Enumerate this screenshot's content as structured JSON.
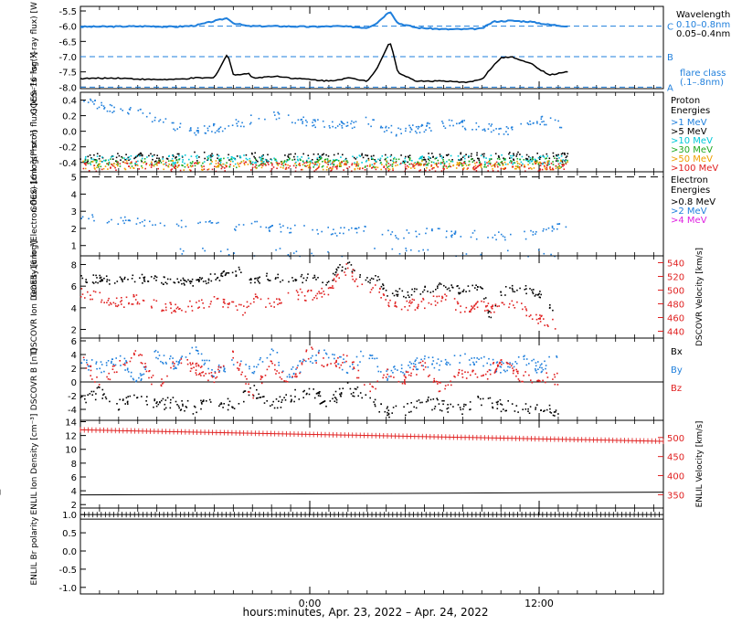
{
  "figure": {
    "xaxis_title": "hours:minutes, Apr. 23, 2022 – Apr. 24, 2022",
    "colors": {
      "black": "#000000",
      "blue": "#1f7fdc",
      "cyan": "#00c8d8",
      "green": "#1fa81f",
      "orange": "#f0a000",
      "red": "#e02020",
      "magenta": "#e020e0"
    }
  },
  "chart_data": [
    {
      "type": "line",
      "panel": "goes-xray",
      "ylabel": "GOES–16 log(X-ray flux) [W m⁻²]",
      "yticks": [
        "-5.5",
        "-6.0",
        "-6.5",
        "-7.0",
        "-7.5",
        "-8.0"
      ],
      "ylim": [
        -8.05,
        -5.35
      ],
      "xlim": [
        -12,
        18.5
      ],
      "legend": {
        "title": "Wavelength",
        "items": [
          {
            "text": "0.10–0.8nm",
            "color": "blue"
          },
          {
            "text": "0.05–0.4nm",
            "color": "black"
          }
        ],
        "note": [
          "flare class",
          "(.1–.8nm)"
        ]
      },
      "flare_levels": [
        {
          "label": "C",
          "value": -6.0
        },
        {
          "label": "B",
          "value": -7.0
        },
        {
          "label": "A",
          "value": -8.0
        }
      ],
      "series": [
        {
          "name": "0.10–0.8nm",
          "color": "blue",
          "x": [
            -12,
            -10,
            -8.5,
            -7,
            -6,
            -4.3,
            -4,
            -3.2,
            -1.5,
            0,
            1.5,
            3,
            3.5,
            4.2,
            4.6,
            5.6,
            7,
            8,
            9,
            9.6,
            10.5,
            11.5,
            12.5,
            13.5
          ],
          "y": [
            -6.02,
            -6.01,
            -6.0,
            -6.02,
            -5.98,
            -5.73,
            -5.9,
            -6.0,
            -6.0,
            -6.02,
            -6.0,
            -6.05,
            -5.9,
            -5.5,
            -5.9,
            -6.05,
            -6.1,
            -6.1,
            -6.08,
            -5.85,
            -5.82,
            -5.85,
            -5.95,
            -6.0
          ]
        },
        {
          "name": "0.05–0.4nm",
          "color": "black",
          "x": [
            -12,
            -10,
            -8.5,
            -7,
            -6,
            -5,
            -4.3,
            -4,
            -3.2,
            -3,
            -2,
            -1.5,
            -1,
            0,
            1,
            2,
            3,
            3.5,
            4.2,
            4.6,
            5.5,
            7,
            8,
            9,
            9.6,
            10,
            10.5,
            11.5,
            12.5,
            13.5
          ],
          "y": [
            -7.72,
            -7.7,
            -7.75,
            -7.75,
            -7.7,
            -7.7,
            -6.9,
            -7.6,
            -7.55,
            -7.7,
            -7.65,
            -7.65,
            -7.7,
            -7.75,
            -7.8,
            -7.7,
            -7.8,
            -7.4,
            -6.5,
            -7.5,
            -7.8,
            -7.8,
            -7.85,
            -7.75,
            -7.3,
            -7.05,
            -7.0,
            -7.2,
            -7.6,
            -7.5
          ]
        }
      ]
    },
    {
      "type": "scatter",
      "panel": "goes-proton",
      "ylabel": "GOES–16 log(Proton flux) [cm⁻²s⁻¹sr⁻¹]",
      "yticks": [
        "0.4",
        "0.2",
        "0.0",
        "-0.2",
        "-0.4"
      ],
      "ylim": [
        -0.52,
        0.5
      ],
      "xlim": [
        -12,
        18.5
      ],
      "legend": {
        "title": "Proton Energies",
        "items": [
          {
            "text": ">1 MeV",
            "color": "blue"
          },
          {
            "text": ">5 MeV",
            "color": "black"
          },
          {
            "text": ">10 MeV",
            "color": "cyan"
          },
          {
            "text": ">30 MeV",
            "color": "green"
          },
          {
            "text": ">50 MeV",
            "color": "orange"
          },
          {
            "text": ">100 MeV",
            "color": "red"
          }
        ]
      },
      "series": [
        {
          "name": ">1 MeV",
          "color": "blue",
          "x": [
            -12,
            -10.5,
            -9,
            -7.5,
            -6,
            -4.5,
            -3,
            -1.5,
            0,
            1.5,
            3,
            4.5,
            6,
            7.5,
            9,
            10.5,
            12,
            13.5
          ],
          "y": [
            0.38,
            0.3,
            0.25,
            0.1,
            0.0,
            0.05,
            0.15,
            0.2,
            0.1,
            0.08,
            0.12,
            0.0,
            0.05,
            0.1,
            0.05,
            0.0,
            0.15,
            0.05
          ]
        },
        {
          "name": ">5 MeV",
          "color": "black",
          "x": [
            -12,
            -9,
            -6,
            -3,
            0,
            3,
            6,
            9,
            12,
            13.5
          ],
          "y": [
            -0.35,
            -0.34,
            -0.32,
            -0.33,
            -0.34,
            -0.33,
            -0.34,
            -0.32,
            -0.33,
            -0.34
          ]
        },
        {
          "name": ">10 MeV",
          "color": "cyan",
          "x": [
            -12,
            -9,
            -6,
            -3,
            0,
            3,
            6,
            9,
            12,
            13.5
          ],
          "y": [
            -0.38,
            -0.37,
            -0.36,
            -0.37,
            -0.38,
            -0.37,
            -0.38,
            -0.36,
            -0.37,
            -0.38
          ]
        },
        {
          "name": ">30 MeV",
          "color": "green",
          "x": [
            -12,
            -9,
            -6,
            -3,
            0,
            3,
            6,
            9,
            12,
            13.5
          ],
          "y": [
            -0.41,
            -0.4,
            -0.4,
            -0.41,
            -0.4,
            -0.41,
            -0.4,
            -0.41,
            -0.4,
            -0.41
          ]
        },
        {
          "name": ">50 MeV",
          "color": "orange",
          "x": [
            -12,
            -9,
            -6,
            -3,
            0,
            3,
            6,
            9,
            12,
            13.5
          ],
          "y": [
            -0.44,
            -0.43,
            -0.44,
            -0.43,
            -0.44,
            -0.43,
            -0.44,
            -0.43,
            -0.44,
            -0.43
          ]
        },
        {
          "name": ">100 MeV",
          "color": "red",
          "x": [
            -12,
            -9,
            -6,
            -3,
            0,
            3,
            6,
            9,
            12,
            13.5
          ],
          "y": [
            -0.46,
            -0.45,
            -0.46,
            -0.45,
            -0.46,
            -0.45,
            -0.46,
            -0.45,
            -0.46,
            -0.45
          ]
        }
      ]
    },
    {
      "type": "scatter",
      "panel": "goes-electron",
      "ylabel": "GOES–16 log(Electron flux) [cm⁻²s⁻¹sr⁻¹]",
      "yticks": [
        "5",
        "4",
        "3",
        "2",
        "1"
      ],
      "ylim": [
        0.4,
        5.3
      ],
      "xlim": [
        -12,
        18.5
      ],
      "threshold": 5.0,
      "legend": {
        "title": "Electron Energies",
        "items": [
          {
            "text": ">0.8 MeV",
            "color": "black"
          },
          {
            "text": ">2 MeV",
            "color": "blue"
          },
          {
            "text": ">4 MeV",
            "color": "magenta"
          }
        ]
      },
      "series": [
        {
          "name": ">2 MeV",
          "color": "blue",
          "x": [
            -12,
            -10.5,
            -9,
            -7.5,
            -6,
            -4.5,
            -3,
            -1.5,
            0,
            1.5,
            3,
            4.5,
            6,
            7.5,
            9,
            10.5,
            12,
            13.5
          ],
          "y": [
            2.6,
            2.5,
            2.4,
            2.2,
            2.3,
            2.1,
            2.2,
            2.0,
            1.9,
            1.8,
            1.9,
            1.6,
            1.8,
            1.7,
            1.6,
            1.5,
            1.7,
            2.2
          ]
        },
        {
          "name": ">2 MeV low",
          "color": "blue",
          "x": [
            -7,
            -5,
            -3,
            -1,
            1,
            3,
            5,
            7,
            9,
            11,
            13
          ],
          "y": [
            0.6,
            0.6,
            0.6,
            0.6,
            0.6,
            0.6,
            0.6,
            0.6,
            0.6,
            0.6,
            0.6
          ]
        }
      ]
    },
    {
      "type": "scatter",
      "panel": "dscovr-density",
      "ylabel": "DSCOVR Ion Density [cm⁻³]",
      "yticks": [
        "8",
        "6",
        "4",
        "2"
      ],
      "ylim": [
        1.2,
        8.8
      ],
      "xlim": [
        -12,
        18.5
      ],
      "y2label": "DSCOVR Velocity [km/s]",
      "y2ticks": [
        "540",
        "520",
        "500",
        "480",
        "460",
        "440"
      ],
      "y2lim": [
        430,
        550
      ],
      "series": [
        {
          "name": "density",
          "color": "black",
          "x": [
            -12,
            -11,
            -10,
            -9,
            -8,
            -7,
            -6,
            -5,
            -4,
            -3.5,
            -3,
            -2,
            -1,
            0,
            1,
            1.5,
            2,
            3,
            3.5,
            4,
            5,
            6,
            7,
            8,
            9,
            9.5,
            10,
            11,
            12,
            13
          ],
          "y": [
            6.8,
            6.6,
            6.5,
            6.7,
            6.6,
            6.5,
            6.4,
            6.8,
            7.2,
            7.6,
            6.5,
            6.9,
            6.5,
            6.8,
            6.3,
            7.6,
            8.0,
            6.5,
            7.0,
            5.5,
            5.3,
            5.6,
            6.0,
            5.5,
            5.9,
            2.8,
            5.5,
            5.8,
            5.4,
            2.8
          ]
        },
        {
          "name": "velocity",
          "color": "red",
          "axis": "y2",
          "x": [
            -12,
            -11,
            -10,
            -9,
            -8,
            -7,
            -6,
            -5,
            -4,
            -3.5,
            -3,
            -2,
            -1,
            0,
            1,
            1.5,
            2,
            3,
            3.5,
            4,
            5,
            6,
            7,
            8,
            9,
            9.5,
            10,
            11,
            12,
            13
          ],
          "y": [
            495,
            490,
            480,
            488,
            478,
            472,
            478,
            485,
            475,
            470,
            488,
            480,
            495,
            492,
            500,
            520,
            532,
            495,
            505,
            485,
            478,
            480,
            490,
            472,
            478,
            470,
            482,
            478,
            456,
            450
          ]
        }
      ]
    },
    {
      "type": "scatter",
      "panel": "dscovr-b",
      "ylabel": "DSCOVR B [nT]",
      "yticks": [
        "6",
        "4",
        "2",
        "0",
        "-2",
        "-4"
      ],
      "ylim": [
        -5.6,
        6.4
      ],
      "xlim": [
        -12,
        18.5
      ],
      "legend": {
        "items": [
          {
            "text": "Bx",
            "color": "black"
          },
          {
            "text": "By",
            "color": "blue"
          },
          {
            "text": "Bz",
            "color": "red"
          }
        ]
      },
      "series": [
        {
          "name": "Bx",
          "color": "black",
          "x": [
            -12,
            -11,
            -10,
            -9,
            -8,
            -7,
            -6,
            -5,
            -4,
            -3,
            -2,
            -1,
            0,
            1,
            2,
            3,
            4,
            5,
            6,
            7,
            8,
            9,
            10,
            11,
            12,
            13
          ],
          "y": [
            -2.5,
            -1.5,
            -3.5,
            -2.0,
            -3.2,
            -3.0,
            -4.0,
            -2.5,
            -3.5,
            -1.0,
            -3.5,
            -2.2,
            -1.5,
            -3.0,
            -1.0,
            -1.8,
            -4.5,
            -4.0,
            -3.0,
            -3.5,
            -4.0,
            -2.5,
            -3.5,
            -3.8,
            -4.2,
            -4.0
          ]
        },
        {
          "name": "By",
          "color": "blue",
          "x": [
            -12,
            -11,
            -10,
            -9,
            -8,
            -7,
            -6,
            -5,
            -4,
            -3,
            -2,
            -1,
            0,
            1,
            2,
            3,
            4,
            5,
            6,
            7,
            8,
            9,
            10,
            11,
            12,
            13
          ],
          "y": [
            3.0,
            2.0,
            3.5,
            0.5,
            4.0,
            2.5,
            4.5,
            1.5,
            3.0,
            1.5,
            4.5,
            1.0,
            3.5,
            4.0,
            2.0,
            4.5,
            1.0,
            2.0,
            3.0,
            2.5,
            3.5,
            3.0,
            2.0,
            3.5,
            2.0,
            3.5
          ]
        },
        {
          "name": "Bz",
          "color": "red",
          "x": [
            -12,
            -11,
            -10,
            -9,
            -8,
            -7,
            -6,
            -5,
            -4,
            -3,
            -2,
            -1,
            0,
            1,
            2,
            3,
            4,
            5,
            6,
            7,
            8,
            9,
            10,
            11,
            12,
            13
          ],
          "y": [
            4.0,
            -0.5,
            2.5,
            4.5,
            -1.0,
            3.0,
            2.0,
            0.5,
            4.0,
            -2.0,
            2.5,
            0.0,
            4.5,
            2.0,
            3.5,
            -1.5,
            1.5,
            0.5,
            2.5,
            -1.5,
            1.5,
            0.5,
            3.0,
            1.0,
            0.5,
            0.5
          ]
        }
      ]
    },
    {
      "type": "line",
      "panel": "enlil-density",
      "ylabel": "ENLIL Ion Density [cm⁻³]",
      "yticks": [
        "14",
        "12",
        "10",
        "8",
        "6",
        "4",
        "2"
      ],
      "ylim": [
        1.5,
        14.2
      ],
      "xlim": [
        -12,
        18.5
      ],
      "y2label": "ENLIL Velocity [km/s]",
      "y2ticks": [
        "500",
        "450",
        "400",
        "350"
      ],
      "y2lim": [
        315,
        545
      ],
      "series": [
        {
          "name": "density",
          "color": "black",
          "x": [
            -12,
            18.5
          ],
          "y": [
            3.4,
            3.8
          ]
        },
        {
          "name": "velocity",
          "color": "red",
          "axis": "y2",
          "x": [
            -12,
            18.5
          ],
          "y": [
            520,
            490
          ]
        }
      ]
    },
    {
      "type": "line",
      "panel": "enlil-polarity",
      "ylabel": "ENLIL Br polarity",
      "yticks": [
        "1.0",
        "0.5",
        "0.0",
        "-0.5",
        "-1.0"
      ],
      "ylim": [
        -1.18,
        1.18
      ],
      "xlim": [
        -12,
        18.5
      ],
      "series": [
        {
          "name": "polarity",
          "color": "black",
          "x": [
            -12,
            18.5
          ],
          "y": [
            1.0,
            1.0
          ]
        }
      ]
    }
  ],
  "xaxis": {
    "ticks": [
      {
        "value": 0,
        "label": "0:00"
      },
      {
        "value": 12,
        "label": "12:00"
      }
    ],
    "minor_step": 1
  }
}
